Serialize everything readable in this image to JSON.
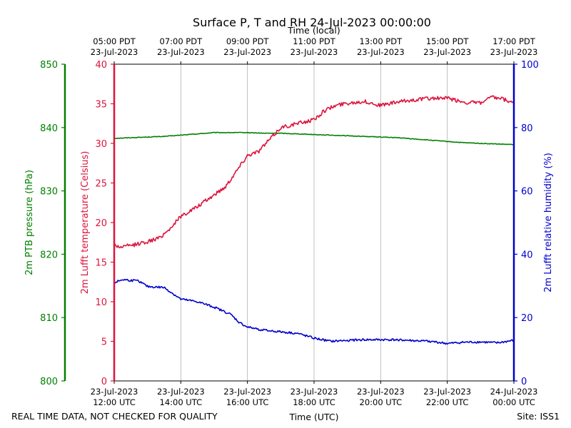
{
  "chart_data": {
    "type": "line",
    "title": "Surface P, T and RH 24-Jul-2023 00:00:00",
    "xlabel_bottom": "Time (UTC)",
    "xlabel_top": "Time (local)",
    "x_range_utc": [
      "2023-07-23 12:00",
      "2023-07-24 00:00"
    ],
    "bottom_ticks": [
      {
        "time": "2023-07-23 12:00",
        "line1": "23-Jul-2023",
        "line2": "12:00 UTC"
      },
      {
        "time": "2023-07-23 14:00",
        "line1": "23-Jul-2023",
        "line2": "14:00 UTC"
      },
      {
        "time": "2023-07-23 16:00",
        "line1": "23-Jul-2023",
        "line2": "16:00 UTC"
      },
      {
        "time": "2023-07-23 18:00",
        "line1": "23-Jul-2023",
        "line2": "18:00 UTC"
      },
      {
        "time": "2023-07-23 20:00",
        "line1": "23-Jul-2023",
        "line2": "20:00 UTC"
      },
      {
        "time": "2023-07-23 22:00",
        "line1": "23-Jul-2023",
        "line2": "22:00 UTC"
      },
      {
        "time": "2023-07-24 00:00",
        "line1": "24-Jul-2023",
        "line2": "00:00 UTC"
      }
    ],
    "top_ticks": [
      {
        "time": "2023-07-23 12:00",
        "line1": "05:00 PDT",
        "line2": "23-Jul-2023"
      },
      {
        "time": "2023-07-23 14:00",
        "line1": "07:00 PDT",
        "line2": "23-Jul-2023"
      },
      {
        "time": "2023-07-23 16:00",
        "line1": "09:00 PDT",
        "line2": "23-Jul-2023"
      },
      {
        "time": "2023-07-23 18:00",
        "line1": "11:00 PDT",
        "line2": "23-Jul-2023"
      },
      {
        "time": "2023-07-23 20:00",
        "line1": "13:00 PDT",
        "line2": "23-Jul-2023"
      },
      {
        "time": "2023-07-23 22:00",
        "line1": "15:00 PDT",
        "line2": "23-Jul-2023"
      },
      {
        "time": "2023-07-24 00:00",
        "line1": "17:00 PDT",
        "line2": "23-Jul-2023"
      }
    ],
    "grid": "vertical",
    "axes": {
      "pressure": {
        "label": "2m PTB pressure (hPa)",
        "range": [
          800,
          850
        ],
        "ticks": [
          800,
          810,
          820,
          830,
          840,
          850
        ],
        "color": "#008000"
      },
      "temperature": {
        "label": "2m Lufft temperature (Celsius)",
        "range": [
          0,
          40
        ],
        "ticks": [
          0,
          5,
          10,
          15,
          20,
          25,
          30,
          35,
          40
        ],
        "color": "#dc143c"
      },
      "humidity": {
        "label": "2m Lufft relative humidity (%)",
        "range": [
          0,
          100
        ],
        "ticks": [
          0,
          20,
          40,
          60,
          80,
          100
        ],
        "color": "#0000cd"
      }
    },
    "series": [
      {
        "axis": "pressure",
        "color": "#008000",
        "noise": 0.05,
        "points": [
          [
            "2023-07-23 12:00",
            838.3
          ],
          [
            "2023-07-23 12:30",
            838.4
          ],
          [
            "2023-07-23 13:00",
            838.5
          ],
          [
            "2023-07-23 13:30",
            838.6
          ],
          [
            "2023-07-23 14:00",
            838.8
          ],
          [
            "2023-07-23 14:30",
            839.0
          ],
          [
            "2023-07-23 15:00",
            839.2
          ],
          [
            "2023-07-23 15:30",
            839.2
          ],
          [
            "2023-07-23 16:00",
            839.2
          ],
          [
            "2023-07-23 16:30",
            839.1
          ],
          [
            "2023-07-23 17:00",
            839.1
          ],
          [
            "2023-07-23 17:30",
            839.0
          ],
          [
            "2023-07-23 18:00",
            838.9
          ],
          [
            "2023-07-23 18:30",
            838.8
          ],
          [
            "2023-07-23 19:00",
            838.7
          ],
          [
            "2023-07-23 19:30",
            838.6
          ],
          [
            "2023-07-23 20:00",
            838.5
          ],
          [
            "2023-07-23 20:30",
            838.4
          ],
          [
            "2023-07-23 21:00",
            838.2
          ],
          [
            "2023-07-23 21:30",
            838.0
          ],
          [
            "2023-07-23 22:00",
            837.8
          ],
          [
            "2023-07-23 22:30",
            837.6
          ],
          [
            "2023-07-23 23:00",
            837.5
          ],
          [
            "2023-07-23 23:30",
            837.4
          ],
          [
            "2023-07-24 00:00",
            837.3
          ]
        ]
      },
      {
        "axis": "temperature",
        "color": "#dc143c",
        "noise": 0.25,
        "points": [
          [
            "2023-07-23 12:00",
            17.2
          ],
          [
            "2023-07-23 12:10",
            16.9
          ],
          [
            "2023-07-23 12:30",
            17.1
          ],
          [
            "2023-07-23 13:00",
            17.6
          ],
          [
            "2023-07-23 13:20",
            18.0
          ],
          [
            "2023-07-23 13:40",
            19.2
          ],
          [
            "2023-07-23 14:00",
            20.8
          ],
          [
            "2023-07-23 14:30",
            22.0
          ],
          [
            "2023-07-23 15:00",
            23.5
          ],
          [
            "2023-07-23 15:20",
            24.5
          ],
          [
            "2023-07-23 15:40",
            26.5
          ],
          [
            "2023-07-23 16:00",
            28.5
          ],
          [
            "2023-07-23 16:20",
            29.0
          ],
          [
            "2023-07-23 16:40",
            30.5
          ],
          [
            "2023-07-23 17:00",
            32.0
          ],
          [
            "2023-07-23 17:30",
            32.5
          ],
          [
            "2023-07-23 18:00",
            33.0
          ],
          [
            "2023-07-23 18:20",
            34.2
          ],
          [
            "2023-07-23 18:40",
            34.8
          ],
          [
            "2023-07-23 19:00",
            35.1
          ],
          [
            "2023-07-23 19:30",
            35.3
          ],
          [
            "2023-07-23 20:00",
            34.8
          ],
          [
            "2023-07-23 20:30",
            35.2
          ],
          [
            "2023-07-23 21:00",
            35.5
          ],
          [
            "2023-07-23 21:30",
            35.7
          ],
          [
            "2023-07-23 22:00",
            35.7
          ],
          [
            "2023-07-23 22:30",
            35.2
          ],
          [
            "2023-07-23 23:00",
            35.1
          ],
          [
            "2023-07-23 23:20",
            35.8
          ],
          [
            "2023-07-23 23:40",
            35.6
          ],
          [
            "2023-07-24 00:00",
            35.0
          ]
        ]
      },
      {
        "axis": "humidity",
        "color": "#0000cd",
        "noise": 0.35,
        "points": [
          [
            "2023-07-23 12:00",
            31.0
          ],
          [
            "2023-07-23 12:15",
            32.0
          ],
          [
            "2023-07-23 12:45",
            31.5
          ],
          [
            "2023-07-23 13:00",
            29.8
          ],
          [
            "2023-07-23 13:30",
            29.5
          ],
          [
            "2023-07-23 14:00",
            25.8
          ],
          [
            "2023-07-23 14:30",
            25.0
          ],
          [
            "2023-07-23 15:00",
            23.3
          ],
          [
            "2023-07-23 15:30",
            21.0
          ],
          [
            "2023-07-23 15:45",
            18.5
          ],
          [
            "2023-07-23 16:00",
            17.0
          ],
          [
            "2023-07-23 16:30",
            16.0
          ],
          [
            "2023-07-23 17:00",
            15.5
          ],
          [
            "2023-07-23 17:30",
            15.0
          ],
          [
            "2023-07-23 18:00",
            13.5
          ],
          [
            "2023-07-23 18:30",
            12.5
          ],
          [
            "2023-07-23 19:00",
            12.8
          ],
          [
            "2023-07-23 19:30",
            13.0
          ],
          [
            "2023-07-23 20:00",
            13.0
          ],
          [
            "2023-07-23 20:30",
            13.0
          ],
          [
            "2023-07-23 21:00",
            12.7
          ],
          [
            "2023-07-23 21:30",
            12.5
          ],
          [
            "2023-07-23 22:00",
            11.8
          ],
          [
            "2023-07-23 22:30",
            12.2
          ],
          [
            "2023-07-23 23:00",
            12.3
          ],
          [
            "2023-07-23 23:30",
            12.0
          ],
          [
            "2023-07-24 00:00",
            12.8
          ]
        ]
      }
    ]
  },
  "footer": {
    "disclaimer": "REAL TIME DATA, NOT CHECKED FOR QUALITY",
    "site": "Site: ISS1"
  }
}
